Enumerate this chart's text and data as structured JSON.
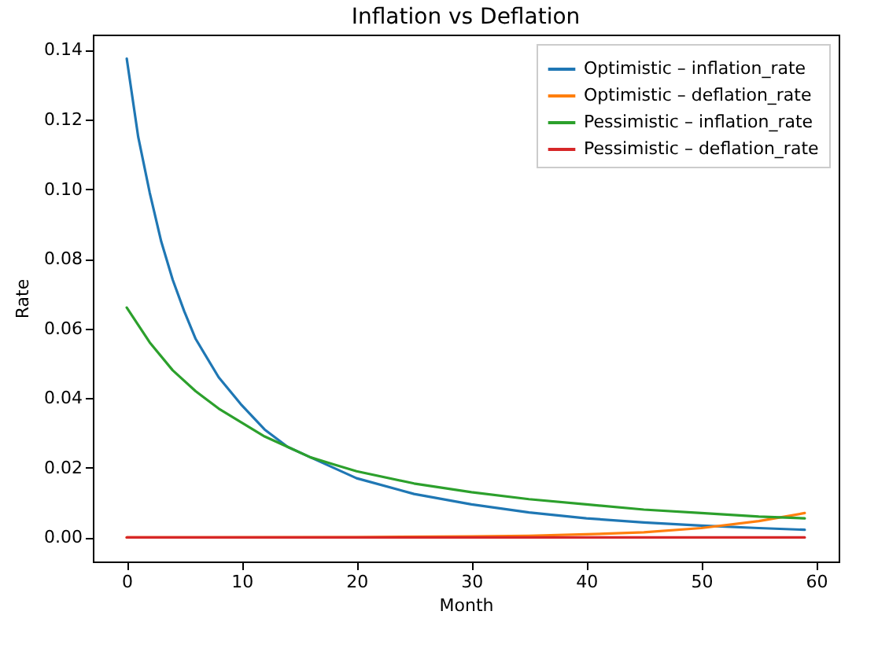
{
  "chart_data": {
    "type": "line",
    "title": "Inflation vs Deflation",
    "xlabel": "Month",
    "ylabel": "Rate",
    "xlim": [
      -2.95,
      61.95
    ],
    "xticks": [
      0,
      10,
      20,
      30,
      40,
      50,
      60
    ],
    "ylim": [
      -0.0069,
      0.1444
    ],
    "yticks": [
      {
        "value": 0,
        "label": "0.00"
      },
      {
        "value": 0.02,
        "label": "0.02"
      },
      {
        "value": 0.04,
        "label": "0.04"
      },
      {
        "value": 0.06,
        "label": "0.06"
      },
      {
        "value": 0.08,
        "label": "0.08"
      },
      {
        "value": 0.1,
        "label": "0.10"
      },
      {
        "value": 0.12,
        "label": "0.12"
      },
      {
        "value": 0.14,
        "label": "0.14"
      }
    ],
    "grid": false,
    "legend": "top right",
    "line_style": "solid",
    "series": [
      {
        "name": "Optimistic – inflation_rate",
        "color": "#1f77b4",
        "x": [
          0,
          1,
          2,
          3,
          4,
          5,
          6,
          8,
          10,
          12,
          14,
          16,
          18,
          20,
          25,
          30,
          35,
          40,
          45,
          50,
          55,
          59
        ],
        "values": [
          0.1375,
          0.115,
          0.099,
          0.085,
          0.074,
          0.065,
          0.057,
          0.046,
          0.038,
          0.031,
          0.026,
          0.023,
          0.02,
          0.017,
          0.0125,
          0.0095,
          0.0072,
          0.0055,
          0.0043,
          0.0034,
          0.0027,
          0.0022
        ]
      },
      {
        "name": "Optimistic – deflation_rate",
        "color": "#ff7f0e",
        "x": [
          0,
          20,
          30,
          35,
          40,
          45,
          50,
          55,
          59
        ],
        "values": [
          0,
          0.0001,
          0.0003,
          0.0005,
          0.0009,
          0.0015,
          0.0027,
          0.0047,
          0.007
        ]
      },
      {
        "name": "Pessimistic – inflation_rate",
        "color": "#2ca02c",
        "x": [
          0,
          2,
          4,
          6,
          8,
          10,
          12,
          14,
          16,
          18,
          20,
          25,
          30,
          35,
          40,
          45,
          50,
          55,
          59
        ],
        "values": [
          0.066,
          0.056,
          0.048,
          0.042,
          0.037,
          0.033,
          0.029,
          0.026,
          0.023,
          0.021,
          0.019,
          0.0155,
          0.013,
          0.011,
          0.0095,
          0.008,
          0.007,
          0.006,
          0.0055
        ]
      },
      {
        "name": "Pessimistic – deflation_rate",
        "color": "#d62728",
        "x": [
          0,
          59
        ],
        "values": [
          0,
          0
        ]
      }
    ]
  }
}
